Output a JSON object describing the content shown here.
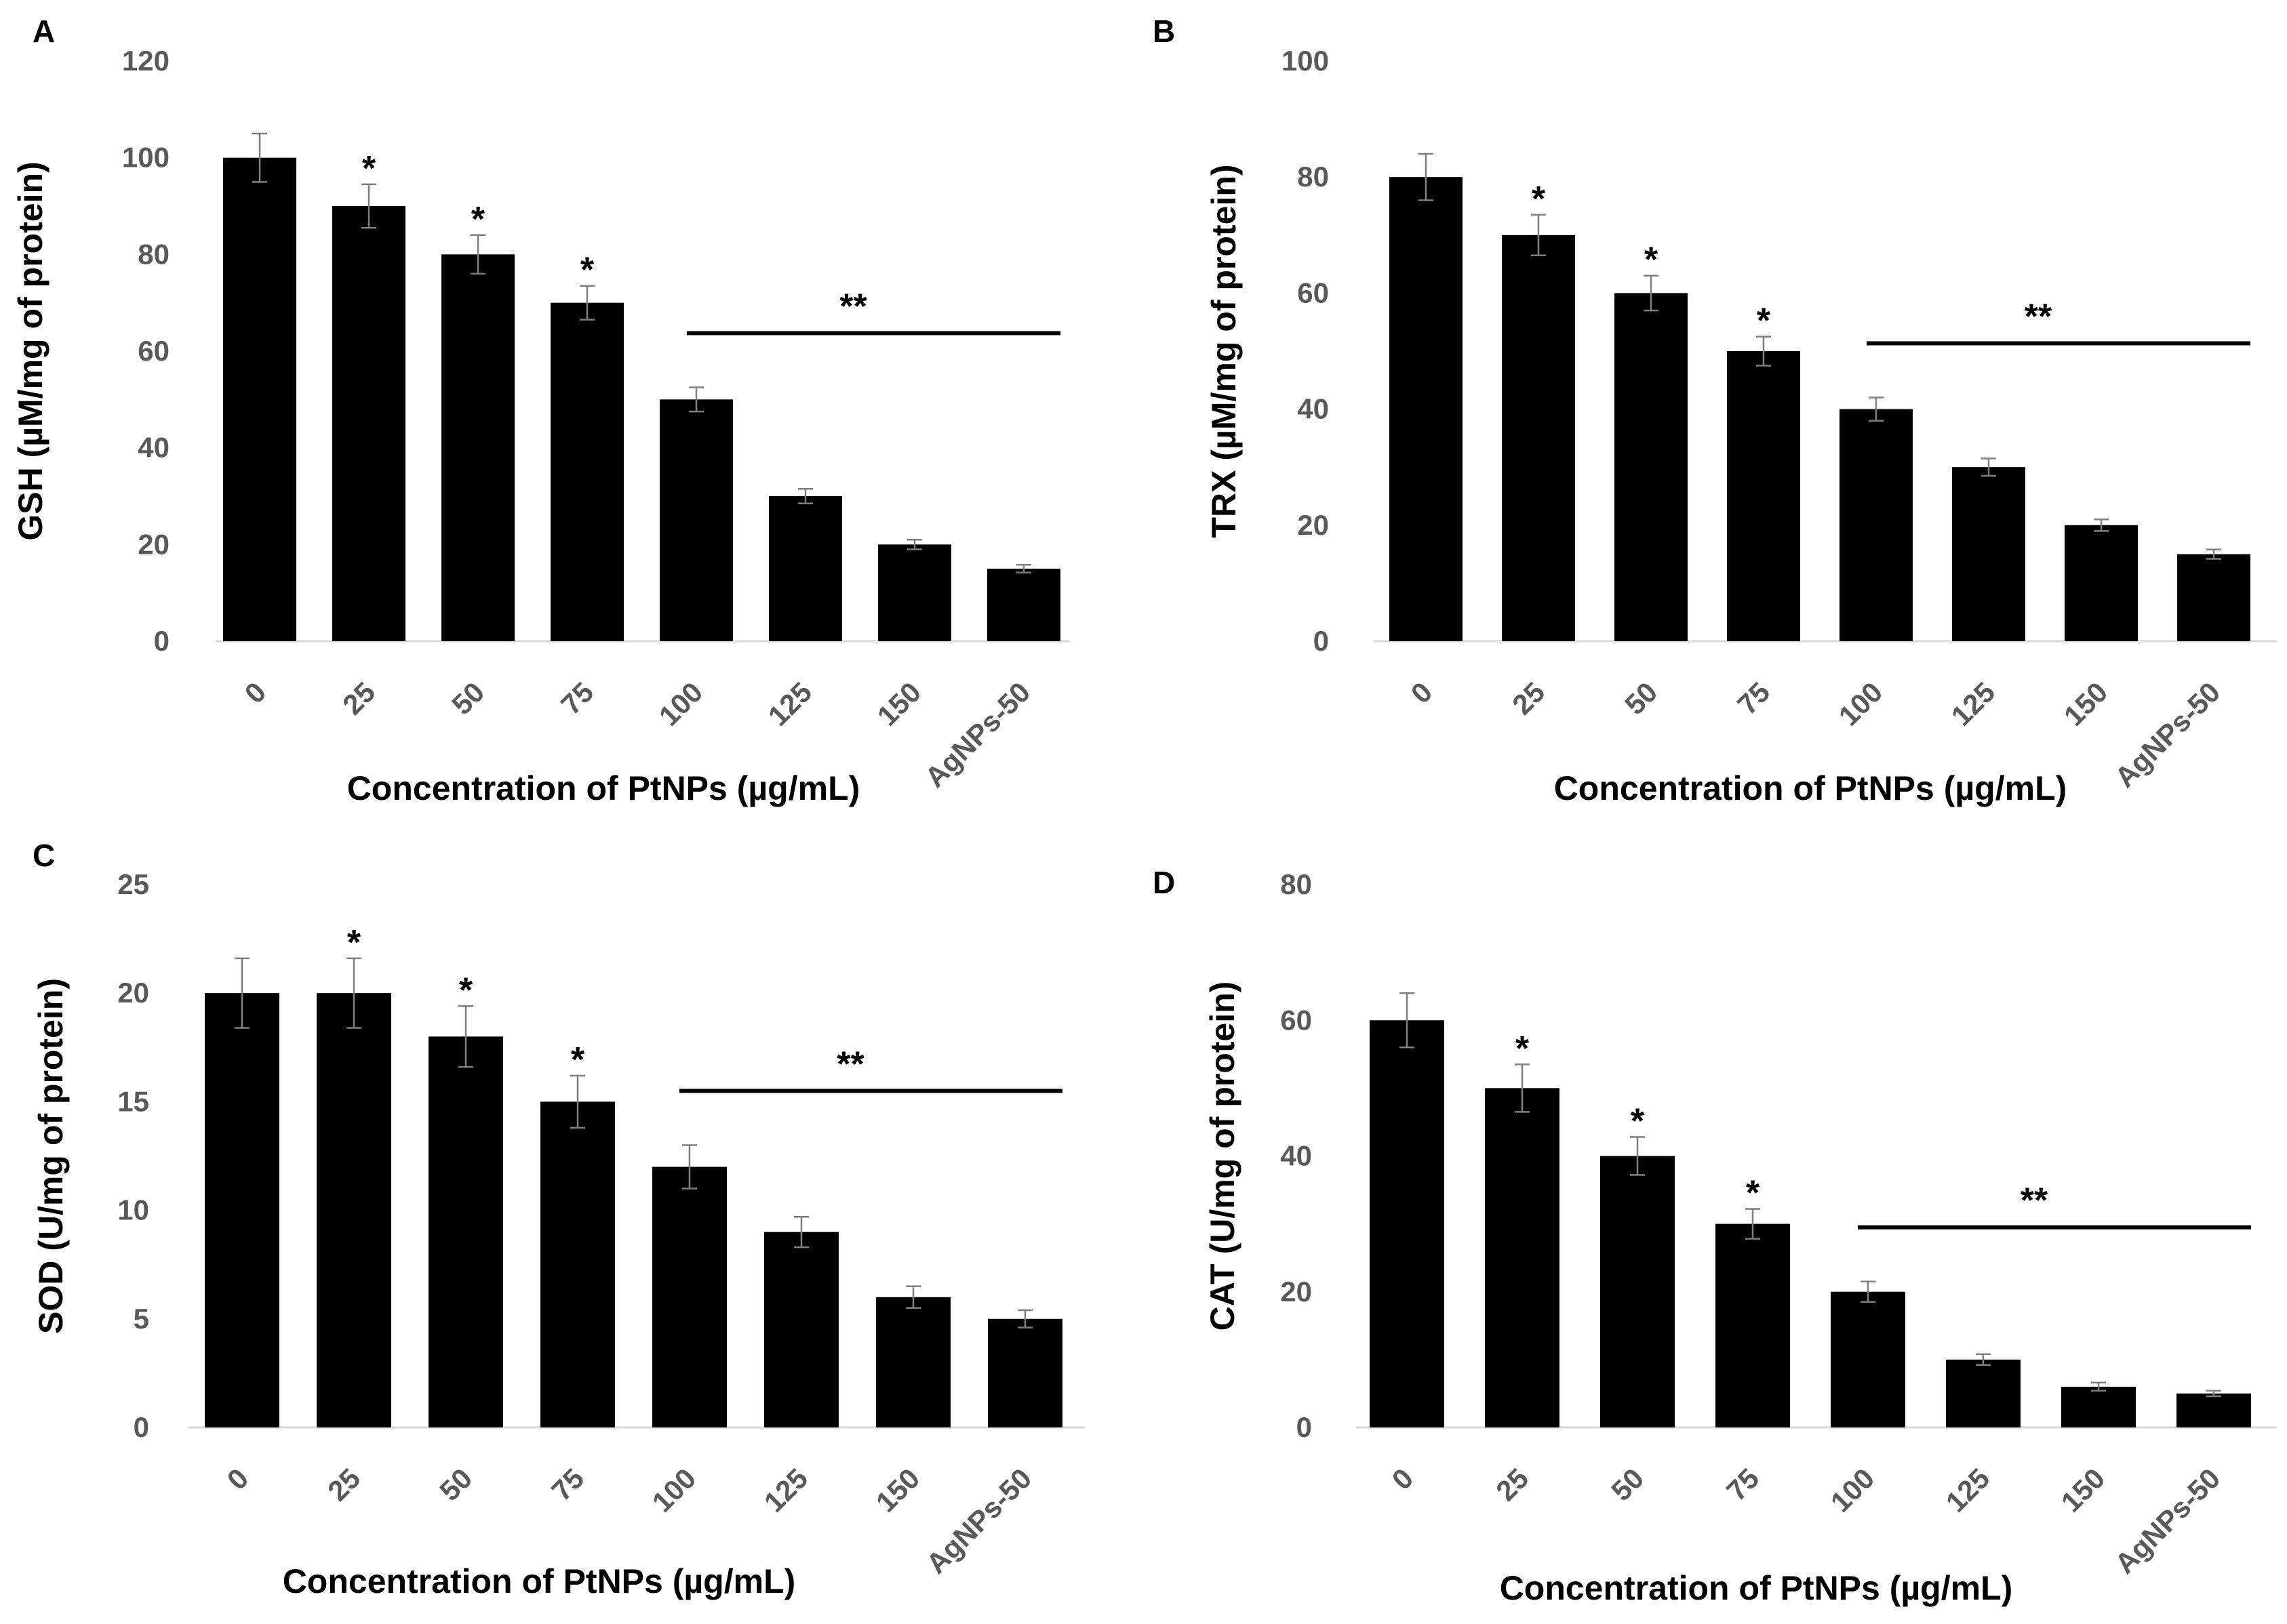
{
  "chart_data": [
    {
      "type": "bar",
      "panel": "A",
      "title": "",
      "xlabel": "Concentration of PtNPs (µg/mL)",
      "ylabel": "GSH (µM/mg of protein)",
      "ylim": [
        0,
        120
      ],
      "yticks": [
        0,
        20,
        40,
        60,
        80,
        100,
        120
      ],
      "categories": [
        "0",
        "25",
        "50",
        "75",
        "100",
        "125",
        "150",
        "AgNPs-50"
      ],
      "values": [
        100,
        90,
        80,
        70,
        50,
        30,
        20,
        15
      ],
      "errors": [
        5,
        4.5,
        4,
        3.5,
        2.5,
        1.5,
        1,
        0.8
      ],
      "annotations": [
        "",
        "*",
        "*",
        "*",
        "",
        "",
        "",
        ""
      ],
      "bracket": {
        "label": "**",
        "from": 4,
        "to": 7
      }
    },
    {
      "type": "bar",
      "panel": "B",
      "title": "",
      "xlabel": "Concentration of PtNPs (µg/mL)",
      "ylabel": "TRX (µM/mg of protein)",
      "ylim": [
        0,
        100
      ],
      "yticks": [
        0,
        20,
        40,
        60,
        80,
        100
      ],
      "categories": [
        "0",
        "25",
        "50",
        "75",
        "100",
        "125",
        "150",
        "AgNPs-50"
      ],
      "values": [
        80,
        70,
        60,
        50,
        40,
        30,
        20,
        15
      ],
      "errors": [
        4,
        3.5,
        3,
        2.5,
        2,
        1.5,
        1,
        0.8
      ],
      "annotations": [
        "",
        "*",
        "*",
        "*",
        "",
        "",
        "",
        ""
      ],
      "bracket": {
        "label": "**",
        "from": 4,
        "to": 7
      }
    },
    {
      "type": "bar",
      "panel": "C",
      "title": "",
      "xlabel": "Concentration of PtNPs (µg/mL)",
      "ylabel": "SOD (U/mg of protein)",
      "ylim": [
        0,
        25
      ],
      "yticks": [
        0,
        5,
        10,
        15,
        20,
        25
      ],
      "categories": [
        "0",
        "25",
        "50",
        "75",
        "100",
        "125",
        "150",
        "AgNPs-50"
      ],
      "values": [
        20,
        20,
        18,
        15,
        12,
        9,
        6,
        5
      ],
      "errors": [
        1.6,
        1.6,
        1.4,
        1.2,
        1,
        0.7,
        0.5,
        0.4
      ],
      "annotations": [
        "",
        "*",
        "*",
        "*",
        "",
        "",
        "",
        ""
      ],
      "bracket": {
        "label": "**",
        "from": 4,
        "to": 7
      }
    },
    {
      "type": "bar",
      "panel": "D",
      "title": "",
      "xlabel": "Concentration of PtNPs (µg/mL)",
      "ylabel": "CAT (U/mg of protein)",
      "ylim": [
        0,
        80
      ],
      "yticks": [
        0,
        20,
        40,
        60,
        80
      ],
      "categories": [
        "0",
        "25",
        "50",
        "75",
        "100",
        "125",
        "150",
        "AgNPs-50"
      ],
      "values": [
        60,
        50,
        40,
        30,
        20,
        10,
        6,
        5
      ],
      "errors": [
        4,
        3.5,
        2.8,
        2.2,
        1.5,
        0.8,
        0.6,
        0.4
      ],
      "annotations": [
        "",
        "*",
        "*",
        "*",
        "",
        "",
        "",
        ""
      ],
      "bracket": {
        "label": "**",
        "from": 4,
        "to": 7
      }
    }
  ]
}
